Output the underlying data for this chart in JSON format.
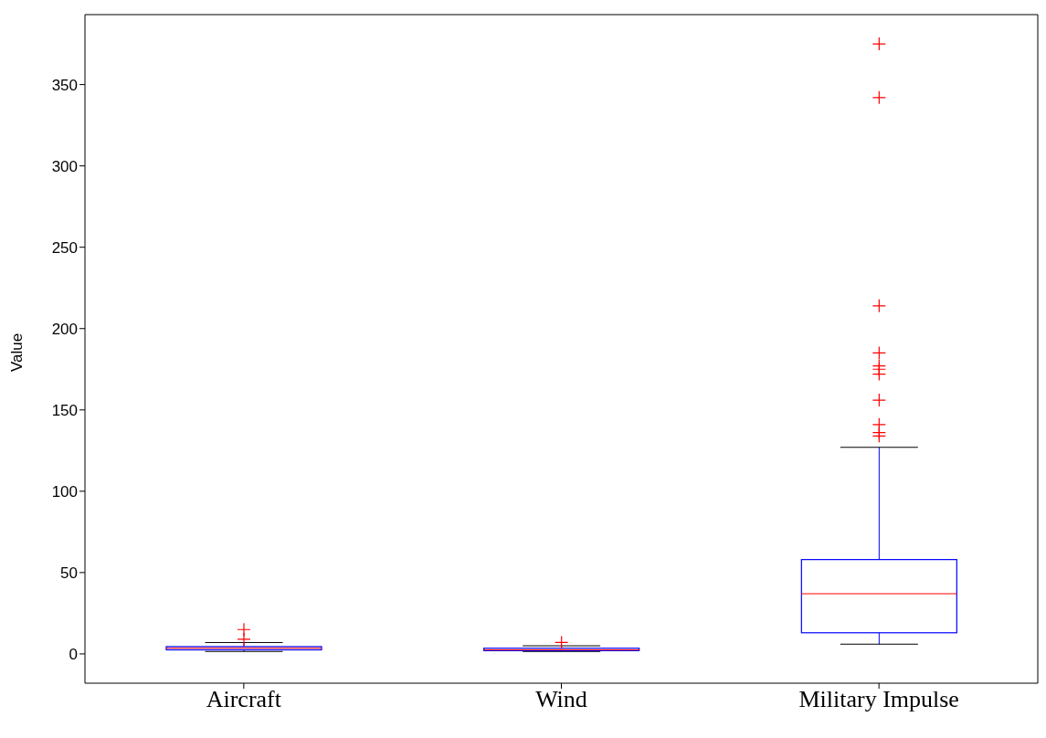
{
  "chart_data": {
    "type": "box",
    "ylabel": "Value",
    "categories": [
      "Aircraft",
      "Wind",
      "Military Impulse"
    ],
    "color": "#0000ff",
    "boxes": [
      {
        "low": 1.5,
        "q1": 2.5,
        "median": 3.5,
        "q3": 4.5,
        "high": 7,
        "outliers": [
          9,
          15
        ]
      },
      {
        "low": 1.5,
        "q1": 2,
        "median": 2.5,
        "q3": 3.5,
        "high": 5,
        "outliers": [
          7
        ]
      },
      {
        "low": 6,
        "q1": 13,
        "median": 37,
        "q3": 58,
        "high": 127,
        "outliers": [
          134,
          136,
          141,
          156,
          172,
          175,
          177,
          185,
          214,
          342,
          375
        ]
      }
    ],
    "ylim": [
      -18,
      393
    ],
    "yticks": [
      0,
      50,
      100,
      150,
      200,
      250,
      300,
      350
    ]
  }
}
